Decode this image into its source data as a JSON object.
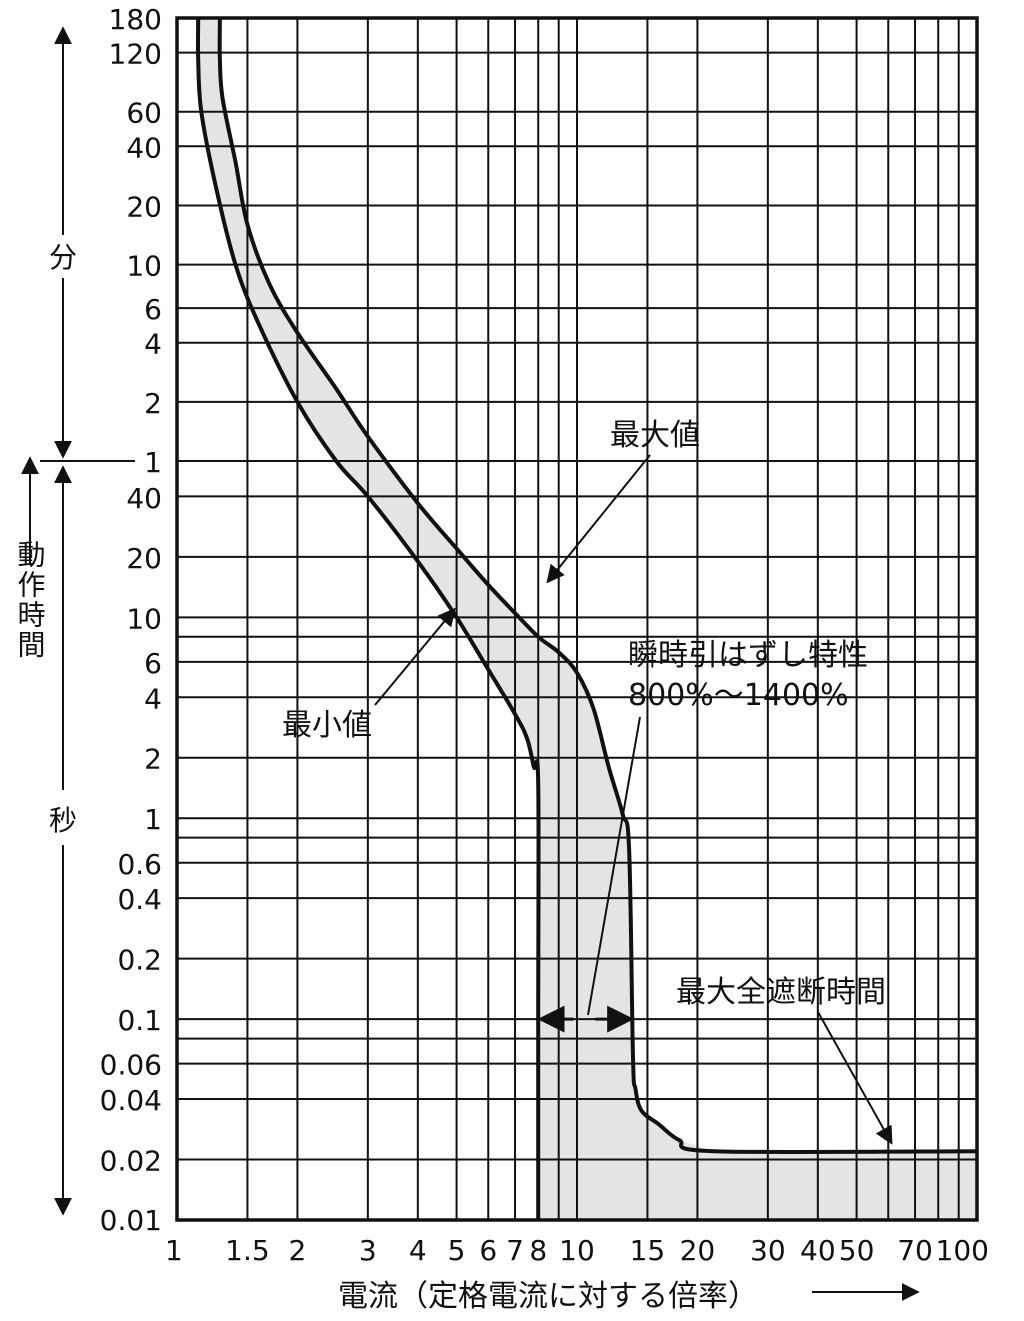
{
  "chart_data": {
    "type": "line",
    "xlabel": "電流（定格電流に対する倍率）",
    "ylabel": "動作時間",
    "x_scale": "log",
    "xlim": [
      1,
      100
    ],
    "x_ticks": [
      1,
      1.5,
      2,
      3,
      4,
      5,
      6,
      7,
      8,
      10,
      15,
      20,
      30,
      40,
      50,
      70,
      100
    ],
    "x_tick_labels": [
      "1",
      "1.5",
      "2",
      "3",
      "4",
      "5",
      "6",
      "7",
      "8",
      "10",
      "15",
      "20",
      "30",
      "40",
      "50",
      "70",
      "100"
    ],
    "y_scale": "log",
    "y_units": {
      "minutes": "分",
      "seconds": "秒"
    },
    "y_tick_labels_minutes": [
      "180",
      "120",
      "60",
      "40",
      "20",
      "10",
      "6",
      "4",
      "2",
      "1"
    ],
    "y_tick_labels_seconds": [
      "40",
      "20",
      "10",
      "6",
      "4",
      "2",
      "1",
      "0.6",
      "0.4",
      "0.2",
      "0.1",
      "0.06",
      "0.04",
      "0.02",
      "0.01"
    ],
    "ylim_seconds": [
      0.01,
      10800
    ],
    "grid": true,
    "series": [
      {
        "name": "最大値",
        "x": [
          1.28,
          1.28,
          1.3,
          1.4,
          1.5,
          1.7,
          2.0,
          2.5,
          3.0,
          4.0,
          5.0,
          6.0,
          7.0,
          8.0,
          9.0,
          10.0,
          11.0,
          12.0,
          13.0,
          13.5,
          13.8,
          14.0,
          14.5,
          16.0,
          18.0,
          22.0,
          100.0
        ],
        "y": [
          10800,
          6600,
          4200,
          2000,
          960,
          480,
          270,
          140,
          80,
          37,
          22,
          14.5,
          10.5,
          8,
          6.7,
          5.3,
          3.5,
          1.8,
          1.05,
          0.7,
          0.065,
          0.045,
          0.035,
          0.03,
          0.025,
          0.022,
          0.022
        ]
      },
      {
        "name": "最小値",
        "x": [
          1.13,
          1.13,
          1.15,
          1.25,
          1.4,
          1.6,
          2.0,
          2.5,
          3.0,
          4.0,
          5.0,
          6.0,
          7.0,
          7.5,
          7.8,
          8.0,
          8.0,
          8.0
        ],
        "y": [
          10800,
          6600,
          3600,
          1500,
          600,
          300,
          120,
          60,
          40,
          19,
          10,
          5.5,
          3.3,
          2.5,
          1.8,
          1.5,
          0.1,
          0.01
        ]
      }
    ],
    "annotations": [
      {
        "text": "最大値",
        "target_x": 8.2,
        "target_y": 14
      },
      {
        "text": "最小値",
        "target_x": 5.0,
        "target_y": 11.5
      },
      {
        "text": "瞬時引はずし特性",
        "line2": "800%～1400%",
        "arrow_from_x": 8,
        "arrow_to_x": 14,
        "arrow_y": 0.1
      },
      {
        "text": "最大全遮断時間",
        "target_x": 50,
        "target_y": 0.022
      }
    ]
  }
}
